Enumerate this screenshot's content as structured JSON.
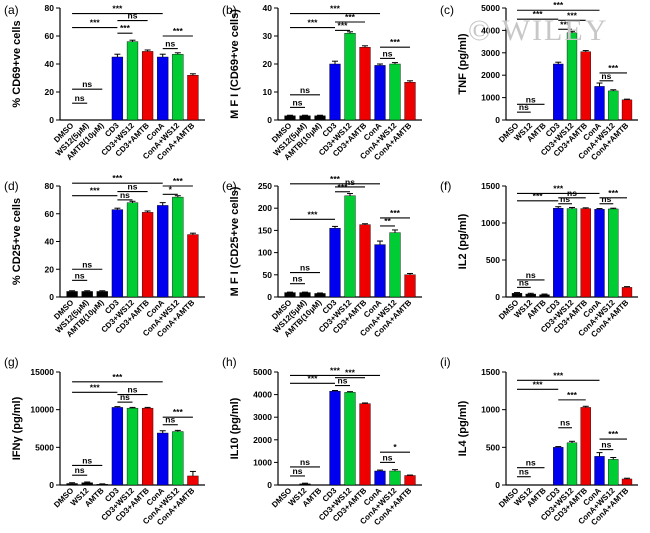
{
  "watermark": "© WILEY",
  "colors": {
    "black": "#000000",
    "blue": "#0000ee",
    "green": "#00cc33",
    "red": "#ee0000",
    "axis": "#000000"
  },
  "chart_data": [
    {
      "panel": "(a)",
      "type": "bar",
      "ylabel": "% CD69+ve cells",
      "ylabel_sup": "+ve",
      "ylim": [
        0,
        80
      ],
      "yticks": [
        0,
        20,
        40,
        60,
        80
      ],
      "categories": [
        "DMSO",
        "WS12(5μM)",
        "AMTB(10μM)",
        "CD3",
        "CD3+WS12",
        "CD3+AMTB",
        "ConA",
        "ConA+WS12",
        "ConA+AMTB"
      ],
      "values": [
        0,
        0,
        0,
        45,
        56,
        49,
        45,
        47,
        32
      ],
      "errors": [
        0,
        0,
        0,
        2,
        1,
        1,
        2,
        1,
        1
      ],
      "bar_colors": [
        "black",
        "black",
        "black",
        "blue",
        "green",
        "red",
        "blue",
        "green",
        "red"
      ],
      "significance": [
        {
          "from": 0,
          "to": 3,
          "label": "***",
          "y": 66
        },
        {
          "from": 0,
          "to": 6,
          "label": "***",
          "y": 76
        },
        {
          "from": 0,
          "to": 1,
          "label": "ns",
          "y": 12
        },
        {
          "from": 0,
          "to": 2,
          "label": "ns",
          "y": 22
        },
        {
          "from": 3,
          "to": 4,
          "label": "***",
          "y": 62
        },
        {
          "from": 3,
          "to": 5,
          "label": "ns",
          "y": 71
        },
        {
          "from": 6,
          "to": 7,
          "label": "ns",
          "y": 51
        },
        {
          "from": 6,
          "to": 8,
          "label": "***",
          "y": 60
        }
      ]
    },
    {
      "panel": "(b)",
      "type": "bar",
      "ylabel": "M F I (CD69+ve cells)",
      "ylim": [
        0,
        40
      ],
      "yticks": [
        0,
        10,
        20,
        30,
        40
      ],
      "categories": [
        "DMSO",
        "WS12(5μM)",
        "AMTB(10μM)",
        "CD3",
        "CD3+WS12",
        "CD3+AMTB",
        "ConA",
        "ConA+WS12",
        "ConA+AMTB"
      ],
      "values": [
        1.5,
        1.5,
        1.5,
        20,
        31,
        26,
        19.5,
        20,
        13.5
      ],
      "errors": [
        0.2,
        0.2,
        0.2,
        1,
        0.5,
        0.5,
        0.5,
        0.5,
        0.5
      ],
      "bar_colors": [
        "black",
        "black",
        "black",
        "blue",
        "green",
        "red",
        "blue",
        "green",
        "red"
      ],
      "significance": [
        {
          "from": 0,
          "to": 3,
          "label": "***",
          "y": 33
        },
        {
          "from": 0,
          "to": 6,
          "label": "***",
          "y": 38
        },
        {
          "from": 0,
          "to": 1,
          "label": "ns",
          "y": 4.5
        },
        {
          "from": 0,
          "to": 2,
          "label": "ns",
          "y": 9
        },
        {
          "from": 3,
          "to": 4,
          "label": "***",
          "y": 32
        },
        {
          "from": 3,
          "to": 5,
          "label": "***",
          "y": 35
        },
        {
          "from": 6,
          "to": 7,
          "label": "ns",
          "y": 22
        },
        {
          "from": 6,
          "to": 8,
          "label": "***",
          "y": 26
        }
      ]
    },
    {
      "panel": "(c)",
      "type": "bar",
      "ylabel": "TNF (pg/ml)",
      "ylim": [
        0,
        5000
      ],
      "yticks": [
        0,
        1000,
        2000,
        3000,
        4000,
        5000
      ],
      "categories": [
        "DMSO",
        "WS12",
        "AMTB",
        "CD3",
        "CD3+WS12",
        "CD3+AMTB",
        "ConA",
        "ConA+WS12",
        "ConA+AMTB"
      ],
      "values": [
        0,
        0,
        0,
        2500,
        3900,
        3050,
        1500,
        1300,
        900
      ],
      "errors": [
        0,
        0,
        0,
        80,
        60,
        50,
        150,
        50,
        30
      ],
      "bar_colors": [
        "black",
        "black",
        "black",
        "blue",
        "green",
        "red",
        "blue",
        "green",
        "red"
      ],
      "significance": [
        {
          "from": 0,
          "to": 3,
          "label": "***",
          "y": 4500
        },
        {
          "from": 0,
          "to": 6,
          "label": "***",
          "y": 4900
        },
        {
          "from": 0,
          "to": 1,
          "label": "ns",
          "y": 350
        },
        {
          "from": 0,
          "to": 2,
          "label": "ns",
          "y": 700
        },
        {
          "from": 3,
          "to": 4,
          "label": "***",
          "y": 4050
        },
        {
          "from": 3,
          "to": 5,
          "label": "***",
          "y": 4450
        },
        {
          "from": 6,
          "to": 7,
          "label": "ns",
          "y": 1750
        },
        {
          "from": 6,
          "to": 8,
          "label": "***",
          "y": 2100
        }
      ]
    },
    {
      "panel": "(d)",
      "type": "bar",
      "ylabel": "% CD25+ve cells",
      "ylim": [
        0,
        80
      ],
      "yticks": [
        0,
        20,
        40,
        60,
        80
      ],
      "categories": [
        "DMSO",
        "WS12(5μM)",
        "AMTB(10μM)",
        "CD3",
        "CD3+WS12",
        "CD3+AMTB",
        "ConA",
        "ConA+WS12",
        "ConA+AMTB"
      ],
      "values": [
        4,
        4,
        4,
        63,
        68,
        61,
        66,
        72,
        45
      ],
      "errors": [
        0.5,
        0.5,
        0.5,
        1,
        1,
        1,
        2,
        1,
        1
      ],
      "bar_colors": [
        "black",
        "black",
        "black",
        "blue",
        "green",
        "red",
        "blue",
        "green",
        "red"
      ],
      "significance": [
        {
          "from": 0,
          "to": 3,
          "label": "***",
          "y": 73
        },
        {
          "from": 0,
          "to": 6,
          "label": "***",
          "y": 82
        },
        {
          "from": 0,
          "to": 1,
          "label": "ns",
          "y": 12
        },
        {
          "from": 0,
          "to": 2,
          "label": "ns",
          "y": 20
        },
        {
          "from": 3,
          "to": 4,
          "label": "ns",
          "y": 70
        },
        {
          "from": 3,
          "to": 5,
          "label": "ns",
          "y": 76
        },
        {
          "from": 6,
          "to": 7,
          "label": "*",
          "y": 74
        },
        {
          "from": 6,
          "to": 8,
          "label": "***",
          "y": 80
        }
      ]
    },
    {
      "panel": "(e)",
      "type": "bar",
      "ylabel": "M F I (CD25+ve cells)",
      "ylim": [
        0,
        250
      ],
      "yticks": [
        0,
        50,
        100,
        150,
        200,
        250
      ],
      "categories": [
        "DMSO",
        "WS12(5μM)",
        "AMTB(10μM)",
        "CD3",
        "CD3+WS12",
        "CD3+AMTB",
        "ConA",
        "ConA+WS12",
        "ConA+AMTB"
      ],
      "values": [
        10,
        10,
        8,
        155,
        228,
        163,
        118,
        145,
        50
      ],
      "errors": [
        1,
        1,
        1,
        4,
        5,
        2,
        8,
        6,
        3
      ],
      "bar_colors": [
        "black",
        "black",
        "black",
        "blue",
        "green",
        "red",
        "blue",
        "green",
        "red"
      ],
      "significance": [
        {
          "from": 0,
          "to": 3,
          "label": "***",
          "y": 175
        },
        {
          "from": 0,
          "to": 6,
          "label": "***",
          "y": 255
        },
        {
          "from": 0,
          "to": 1,
          "label": "ns",
          "y": 30
        },
        {
          "from": 0,
          "to": 2,
          "label": "ns",
          "y": 55
        },
        {
          "from": 3,
          "to": 4,
          "label": "***",
          "y": 237
        },
        {
          "from": 3,
          "to": 5,
          "label": "ns",
          "y": 248
        },
        {
          "from": 6,
          "to": 7,
          "label": "**",
          "y": 160
        },
        {
          "from": 6,
          "to": 8,
          "label": "***",
          "y": 178
        }
      ]
    },
    {
      "panel": "(f)",
      "type": "bar",
      "ylabel": "IL2 (pg/ml)",
      "ylim": [
        0,
        1500
      ],
      "yticks": [
        0,
        500,
        1000,
        1500
      ],
      "categories": [
        "DMSO",
        "WS12",
        "AMTB",
        "CD3",
        "CD3+WS12",
        "CD3+AMTB",
        "ConA",
        "ConA+WS12",
        "ConA+AMTB"
      ],
      "values": [
        50,
        40,
        30,
        1200,
        1195,
        1195,
        1185,
        1190,
        130
      ],
      "errors": [
        10,
        10,
        10,
        20,
        15,
        10,
        10,
        10,
        10
      ],
      "bar_colors": [
        "black",
        "black",
        "black",
        "blue",
        "green",
        "red",
        "blue",
        "green",
        "red"
      ],
      "significance": [
        {
          "from": 0,
          "to": 3,
          "label": "***",
          "y": 1300
        },
        {
          "from": 0,
          "to": 6,
          "label": "***",
          "y": 1400
        },
        {
          "from": 0,
          "to": 1,
          "label": "ns",
          "y": 130
        },
        {
          "from": 0,
          "to": 2,
          "label": "ns",
          "y": 230
        },
        {
          "from": 3,
          "to": 4,
          "label": "ns",
          "y": 1260
        },
        {
          "from": 3,
          "to": 5,
          "label": "ns",
          "y": 1340
        },
        {
          "from": 6,
          "to": 7,
          "label": "ns",
          "y": 1260
        },
        {
          "from": 6,
          "to": 8,
          "label": "***",
          "y": 1340
        }
      ]
    },
    {
      "panel": "(g)",
      "type": "bar",
      "ylabel": "IFNγ (pg/ml)",
      "ylim": [
        0,
        15000
      ],
      "yticks": [
        0,
        5000,
        10000,
        15000
      ],
      "categories": [
        "DMSO",
        "WS12",
        "AMTB",
        "CD3",
        "CD3+WS12",
        "CD3+AMTB",
        "ConA",
        "ConA+WS12",
        "ConA+AMTB"
      ],
      "values": [
        200,
        300,
        100,
        10300,
        10200,
        10200,
        6900,
        7100,
        1200
      ],
      "errors": [
        100,
        100,
        50,
        100,
        100,
        100,
        300,
        150,
        600
      ],
      "bar_colors": [
        "black",
        "black",
        "black",
        "blue",
        "green",
        "red",
        "blue",
        "green",
        "red"
      ],
      "significance": [
        {
          "from": 0,
          "to": 3,
          "label": "***",
          "y": 12300
        },
        {
          "from": 0,
          "to": 6,
          "label": "***",
          "y": 13700
        },
        {
          "from": 0,
          "to": 1,
          "label": "ns",
          "y": 1300
        },
        {
          "from": 0,
          "to": 2,
          "label": "ns",
          "y": 2600
        },
        {
          "from": 3,
          "to": 4,
          "label": "ns",
          "y": 11000
        },
        {
          "from": 3,
          "to": 5,
          "label": "ns",
          "y": 12000
        },
        {
          "from": 6,
          "to": 7,
          "label": "ns",
          "y": 8000
        },
        {
          "from": 6,
          "to": 8,
          "label": "***",
          "y": 9000
        }
      ]
    },
    {
      "panel": "(h)",
      "type": "bar",
      "ylabel": "IL10 (pg/ml)",
      "ylim": [
        0,
        5000
      ],
      "yticks": [
        0,
        1000,
        2000,
        3000,
        4000,
        5000
      ],
      "categories": [
        "DMSO",
        "WS12",
        "AMTB",
        "CD3",
        "CD3+WS12",
        "CD3+AMTB",
        "ConA",
        "ConA+WS12",
        "ConA+AMTB"
      ],
      "values": [
        0,
        50,
        0,
        4150,
        4100,
        3600,
        620,
        620,
        420
      ],
      "errors": [
        0,
        30,
        0,
        30,
        30,
        30,
        40,
        60,
        20
      ],
      "bar_colors": [
        "black",
        "black",
        "black",
        "blue",
        "green",
        "red",
        "blue",
        "green",
        "red"
      ],
      "significance": [
        {
          "from": 0,
          "to": 3,
          "label": "***",
          "y": 4500
        },
        {
          "from": 0,
          "to": 6,
          "label": "***",
          "y": 4850
        },
        {
          "from": 0,
          "to": 1,
          "label": "ns",
          "y": 400
        },
        {
          "from": 0,
          "to": 2,
          "label": "ns",
          "y": 800
        },
        {
          "from": 3,
          "to": 4,
          "label": "ns",
          "y": 4400
        },
        {
          "from": 3,
          "to": 5,
          "label": "***",
          "y": 4750
        },
        {
          "from": 6,
          "to": 7,
          "label": "ns",
          "y": 1000
        },
        {
          "from": 6,
          "to": 8,
          "label": "*",
          "y": 1450
        }
      ]
    },
    {
      "panel": "(i)",
      "type": "bar",
      "ylabel": "IL4 (pg/ml)",
      "ylim": [
        0,
        1500
      ],
      "yticks": [
        0,
        500,
        1000,
        1500
      ],
      "categories": [
        "DMSO",
        "WS12",
        "AMTB",
        "CD3",
        "CD3+WS12",
        "CD3+AMTB",
        "ConA",
        "ConA+WS12",
        "ConA+AMTB"
      ],
      "values": [
        0,
        0,
        0,
        500,
        560,
        1030,
        380,
        340,
        80
      ],
      "errors": [
        0,
        0,
        0,
        10,
        20,
        15,
        50,
        25,
        10
      ],
      "bar_colors": [
        "black",
        "black",
        "black",
        "blue",
        "green",
        "red",
        "blue",
        "green",
        "red"
      ],
      "significance": [
        {
          "from": 0,
          "to": 3,
          "label": "***",
          "y": 1270
        },
        {
          "from": 0,
          "to": 6,
          "label": "***",
          "y": 1390
        },
        {
          "from": 0,
          "to": 1,
          "label": "ns",
          "y": 110
        },
        {
          "from": 0,
          "to": 2,
          "label": "ns",
          "y": 230
        },
        {
          "from": 3,
          "to": 4,
          "label": "ns",
          "y": 760
        },
        {
          "from": 3,
          "to": 5,
          "label": "***",
          "y": 1130
        },
        {
          "from": 6,
          "to": 7,
          "label": "ns",
          "y": 470
        },
        {
          "from": 6,
          "to": 8,
          "label": "***",
          "y": 610
        }
      ]
    }
  ]
}
